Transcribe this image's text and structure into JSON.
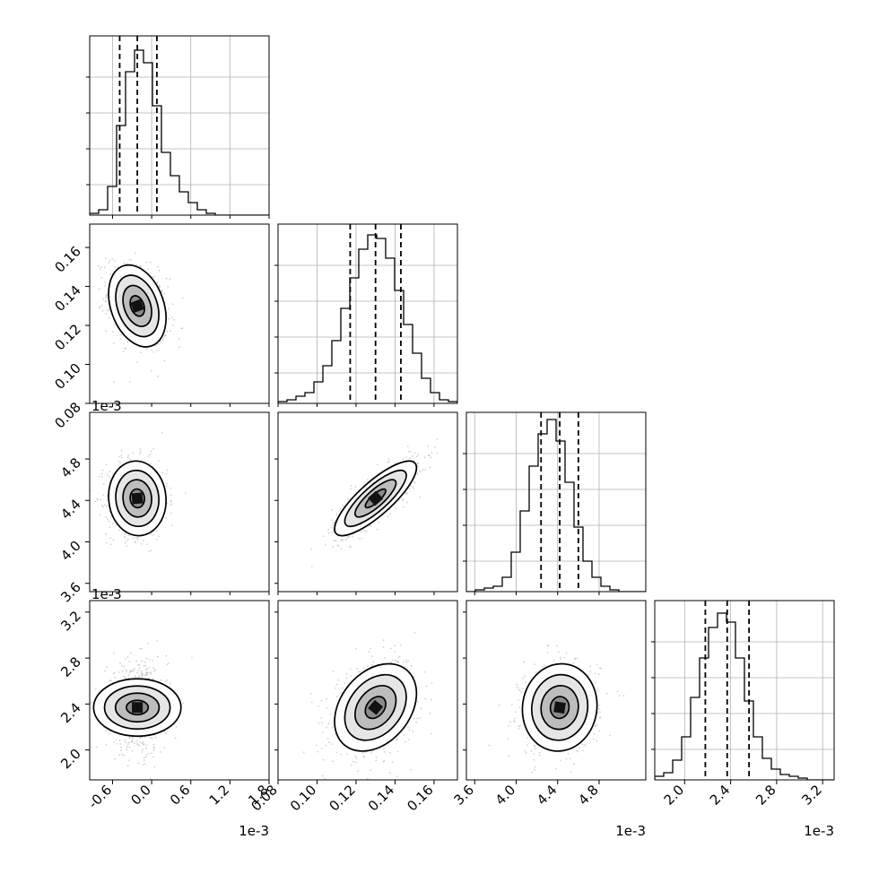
{
  "chart_data": {
    "type": "corner",
    "description_free": true,
    "parameters": [
      {
        "index": 0,
        "range": [
          -0.95,
          1.8
        ],
        "ticks": [
          "-0.6",
          "0.0",
          "0.6",
          "1.2",
          "1.8"
        ],
        "tick_values": [
          -0.6,
          0.0,
          0.6,
          1.2,
          1.8
        ],
        "offset_text": "1e-3",
        "quantiles": [
          -0.49,
          -0.22,
          0.08
        ],
        "hist": {
          "edges_from": -0.95,
          "edges_to": 1.8,
          "counts": [
            1,
            3,
            16,
            50,
            80,
            92,
            85,
            61,
            35,
            22,
            13,
            7,
            3,
            1,
            0,
            0,
            0,
            0,
            0,
            0
          ]
        },
        "hist_ylim": [
          0,
          100
        ]
      },
      {
        "index": 1,
        "range": [
          0.08,
          0.172
        ],
        "ticks": [
          "0.08",
          "0.10",
          "0.12",
          "0.14",
          "0.16"
        ],
        "tick_values": [
          0.08,
          0.1,
          0.12,
          0.14,
          0.16
        ],
        "offset_text": "",
        "quantiles": [
          0.117,
          0.13,
          0.143
        ],
        "hist": {
          "edges_from": 0.08,
          "edges_to": 0.172,
          "counts": [
            1,
            2,
            4,
            6,
            12,
            21,
            35,
            53,
            70,
            86,
            94,
            92,
            81,
            63,
            44,
            28,
            14,
            6,
            2,
            1
          ]
        },
        "hist_ylim": [
          0,
          100
        ]
      },
      {
        "index": 2,
        "range": [
          3.52,
          5.25
        ],
        "ticks": [
          "3.6",
          "4.0",
          "4.4",
          "4.8"
        ],
        "tick_values": [
          3.6,
          4.0,
          4.4,
          4.8
        ],
        "offset_text": "1e-3",
        "quantiles": [
          4.24,
          4.42,
          4.6
        ],
        "hist": {
          "edges_from": 3.52,
          "edges_to": 5.25,
          "counts": [
            0,
            1,
            2,
            3,
            8,
            22,
            45,
            70,
            88,
            96,
            84,
            61,
            36,
            17,
            8,
            3,
            1,
            0,
            0,
            0
          ]
        },
        "hist_ylim": [
          0,
          100
        ]
      },
      {
        "index": 3,
        "range": [
          1.74,
          3.3
        ],
        "ticks": [
          "2.0",
          "2.4",
          "2.8",
          "3.2"
        ],
        "tick_values": [
          2.0,
          2.4,
          2.8,
          3.2
        ],
        "offset_text": "1e-3",
        "quantiles": [
          2.18,
          2.37,
          2.56
        ],
        "hist": {
          "edges_from": 1.74,
          "edges_to": 3.3,
          "counts": [
            2,
            4,
            11,
            24,
            46,
            68,
            85,
            93,
            88,
            68,
            44,
            24,
            12,
            6,
            3,
            2,
            1,
            0,
            0,
            0
          ]
        },
        "hist_ylim": [
          0,
          100
        ]
      }
    ],
    "pairs": [
      {
        "x": 0,
        "y": 1,
        "center": [
          -0.22,
          0.13
        ],
        "sd": [
          0.22,
          0.0105
        ],
        "rho": -0.3
      },
      {
        "x": 0,
        "y": 2,
        "center": [
          -0.22,
          4.42
        ],
        "sd": [
          0.22,
          0.18
        ],
        "rho": -0.05
      },
      {
        "x": 1,
        "y": 2,
        "center": [
          0.13,
          4.42
        ],
        "sd": [
          0.0105,
          0.18
        ],
        "rho": 0.82
      },
      {
        "x": 0,
        "y": 3,
        "center": [
          -0.22,
          2.37
        ],
        "sd": [
          0.22,
          0.19
        ],
        "rho": 0.0
      },
      {
        "x": 1,
        "y": 3,
        "center": [
          0.13,
          2.37
        ],
        "sd": [
          0.0105,
          0.19
        ],
        "rho": 0.32
      },
      {
        "x": 2,
        "y": 3,
        "center": [
          4.42,
          2.37
        ],
        "sd": [
          0.18,
          0.19
        ],
        "rho": 0.05
      }
    ],
    "contour_levels_sigma": [
      0.5,
      1.0,
      1.5,
      2.0
    ],
    "grid": true
  }
}
